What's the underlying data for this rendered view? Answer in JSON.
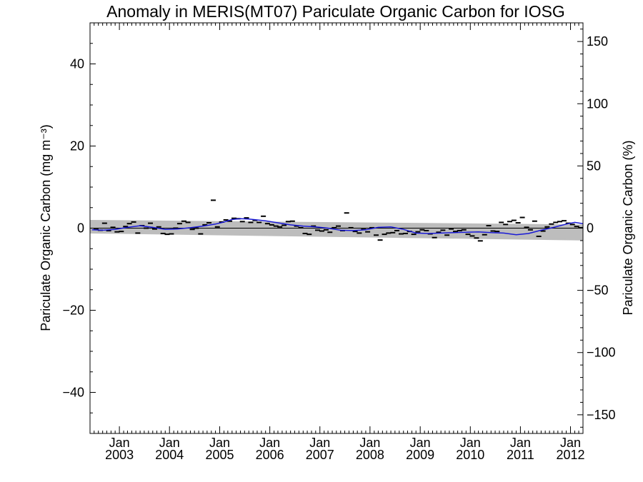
{
  "chart_data": {
    "type": "line",
    "title": "Anomaly in MERIS(MT07) Pariculate Organic Carbon for IOSG",
    "ylabel_left": "Pariculate Organic Carbon (mg m⁻³)",
    "ylabel_right": "Pariculate Organic Carbon (%)",
    "ylim_left": [
      -50,
      50
    ],
    "ylim_right": [
      -165,
      165
    ],
    "xlim": [
      "2002-06-01",
      "2012-04-01"
    ],
    "yticks_left": [
      "−40",
      "−20",
      "0",
      "20",
      "40"
    ],
    "yticks_right": [
      "−150",
      "−100",
      "−50",
      "0",
      "50",
      "100",
      "150"
    ],
    "xticks": [
      {
        "month": "Jan",
        "year": "2003",
        "date": "2003-01-01"
      },
      {
        "month": "Jan",
        "year": "2004",
        "date": "2004-01-01"
      },
      {
        "month": "Jan",
        "year": "2005",
        "date": "2005-01-01"
      },
      {
        "month": "Jan",
        "year": "2006",
        "date": "2006-01-01"
      },
      {
        "month": "Jan",
        "year": "2007",
        "date": "2007-01-01"
      },
      {
        "month": "Jan",
        "year": "2008",
        "date": "2008-01-01"
      },
      {
        "month": "Jan",
        "year": "2009",
        "date": "2009-01-01"
      },
      {
        "month": "Jan",
        "year": "2010",
        "date": "2010-01-01"
      },
      {
        "month": "Jan",
        "year": "2011",
        "date": "2011-01-01"
      },
      {
        "month": "Jan",
        "year": "2012",
        "date": "2012-01-01"
      }
    ],
    "grid": false,
    "zero_line": true,
    "colors": {
      "smoothed": "#1a1ad6",
      "band": "#bdbdbd",
      "monthly": "#000000",
      "zero": "#000000"
    },
    "confidence_band": {
      "start": {
        "x": "2002-06-01",
        "upper": 2.0,
        "lower": -1.3
      },
      "end": {
        "x": "2012-04-01",
        "upper": 0.9,
        "lower": -3.0
      }
    },
    "monthly_anomaly": {
      "x": [
        "2002-07-15",
        "2002-08-15",
        "2002-09-15",
        "2002-10-15",
        "2002-11-15",
        "2002-12-15",
        "2003-01-15",
        "2003-02-15",
        "2003-03-15",
        "2003-04-15",
        "2003-05-15",
        "2003-06-15",
        "2003-07-15",
        "2003-08-15",
        "2003-09-15",
        "2003-10-15",
        "2003-11-15",
        "2003-12-15",
        "2004-01-15",
        "2004-02-15",
        "2004-03-15",
        "2004-04-15",
        "2004-05-15",
        "2004-06-15",
        "2004-07-15",
        "2004-08-15",
        "2004-09-15",
        "2004-10-15",
        "2004-11-15",
        "2004-12-15",
        "2005-01-15",
        "2005-02-15",
        "2005-03-15",
        "2005-04-15",
        "2005-05-15",
        "2005-06-15",
        "2005-07-15",
        "2005-08-15",
        "2005-09-15",
        "2005-10-15",
        "2005-11-15",
        "2005-12-15",
        "2006-01-15",
        "2006-02-15",
        "2006-03-15",
        "2006-04-15",
        "2006-05-15",
        "2006-06-15",
        "2006-07-15",
        "2006-08-15",
        "2006-09-15",
        "2006-10-15",
        "2006-11-15",
        "2006-12-15",
        "2007-01-15",
        "2007-02-15",
        "2007-03-15",
        "2007-04-15",
        "2007-05-15",
        "2007-06-15",
        "2007-07-15",
        "2007-08-15",
        "2007-09-15",
        "2007-10-15",
        "2007-11-15",
        "2007-12-15",
        "2008-01-15",
        "2008-02-15",
        "2008-03-15",
        "2008-04-15",
        "2008-05-15",
        "2008-06-15",
        "2008-07-15",
        "2008-08-15",
        "2008-09-15",
        "2008-10-15",
        "2008-11-15",
        "2008-12-15",
        "2009-01-15",
        "2009-02-15",
        "2009-03-15",
        "2009-04-15",
        "2009-05-15",
        "2009-06-15",
        "2009-07-15",
        "2009-08-15",
        "2009-09-15",
        "2009-10-15",
        "2009-11-15",
        "2009-12-15",
        "2010-01-15",
        "2010-02-15",
        "2010-03-15",
        "2010-04-15",
        "2010-05-15",
        "2010-06-15",
        "2010-07-15",
        "2010-08-15",
        "2010-09-15",
        "2010-10-15",
        "2010-11-15",
        "2010-12-15",
        "2011-01-15",
        "2011-02-15",
        "2011-03-15",
        "2011-04-15",
        "2011-05-15",
        "2011-06-15",
        "2011-07-15",
        "2011-08-15",
        "2011-09-15",
        "2011-10-15",
        "2011-11-15",
        "2011-12-15",
        "2012-01-15",
        "2012-02-15",
        "2012-03-15"
      ],
      "y": [
        -0.3,
        -0.5,
        1.2,
        -0.6,
        0.2,
        -0.9,
        -0.8,
        0.4,
        1.1,
        1.5,
        -1.2,
        0.6,
        0.0,
        1.2,
        -0.2,
        0.3,
        -1.3,
        -1.5,
        -1.4,
        0.0,
        1.1,
        1.7,
        1.4,
        -0.3,
        0.0,
        -1.4,
        0.8,
        1.3,
        6.8,
        0.3,
        1.5,
        2.0,
        1.7,
        2.4,
        2.3,
        1.6,
        2.5,
        1.4,
        1.9,
        1.4,
        2.9,
        1.1,
        0.8,
        0.5,
        0.3,
        0.7,
        1.6,
        1.7,
        0.5,
        0.1,
        -1.3,
        -1.5,
        0.5,
        -0.5,
        -0.7,
        -0.4,
        -1.0,
        0.1,
        0.5,
        -0.6,
        3.7,
        0.1,
        -0.8,
        -1.2,
        -0.3,
        -0.9,
        0.1,
        -1.7,
        -2.9,
        -1.5,
        -1.2,
        -1.1,
        -0.6,
        -1.4,
        -1.3,
        -0.8,
        -1.5,
        -0.9,
        -0.4,
        -0.6,
        -1.4,
        -2.3,
        -1.0,
        -0.5,
        -1.7,
        -0.2,
        -0.8,
        -0.6,
        -0.4,
        -1.5,
        -1.9,
        -2.4,
        -3.1,
        -1.6,
        0.6,
        -0.7,
        -0.8,
        1.4,
        0.9,
        1.6,
        1.9,
        1.3,
        2.6,
        0.2,
        -0.4,
        1.7,
        -2.0,
        -0.7,
        0.3,
        1.0,
        1.4,
        1.6,
        1.8,
        1.2,
        0.9,
        0.4,
        0.1
      ],
      "marker": "short horizontal dash"
    },
    "smoothed": {
      "x": [
        "2002-06-15",
        "2002-09-01",
        "2002-12-01",
        "2003-03-01",
        "2003-06-01",
        "2003-09-01",
        "2003-12-01",
        "2004-03-01",
        "2004-06-01",
        "2004-09-01",
        "2004-12-01",
        "2005-02-01",
        "2005-04-01",
        "2005-06-01",
        "2005-08-01",
        "2005-10-01",
        "2005-12-01",
        "2006-03-01",
        "2006-06-01",
        "2006-09-01",
        "2006-12-01",
        "2007-03-01",
        "2007-06-01",
        "2007-09-01",
        "2007-12-01",
        "2008-03-01",
        "2008-06-01",
        "2008-09-01",
        "2008-12-01",
        "2009-03-01",
        "2009-06-01",
        "2009-09-01",
        "2009-12-01",
        "2010-03-01",
        "2010-06-01",
        "2010-09-01",
        "2010-12-01",
        "2011-03-01",
        "2011-06-01",
        "2011-09-01",
        "2011-12-01",
        "2012-02-01",
        "2012-04-01"
      ],
      "y": [
        -0.4,
        -0.5,
        -0.3,
        0.2,
        0.6,
        0.2,
        -0.3,
        -0.2,
        0.1,
        0.5,
        1.0,
        1.5,
        2.1,
        2.3,
        2.2,
        2.0,
        1.8,
        1.3,
        0.8,
        0.5,
        0.3,
        0.0,
        -0.5,
        -0.6,
        -0.4,
        0.2,
        0.3,
        -0.3,
        -1.2,
        -1.3,
        -1.2,
        -1.1,
        -1.0,
        -0.9,
        -1.1,
        -1.2,
        -1.6,
        -1.3,
        -0.5,
        0.2,
        1.0,
        1.4,
        1.1
      ]
    }
  }
}
